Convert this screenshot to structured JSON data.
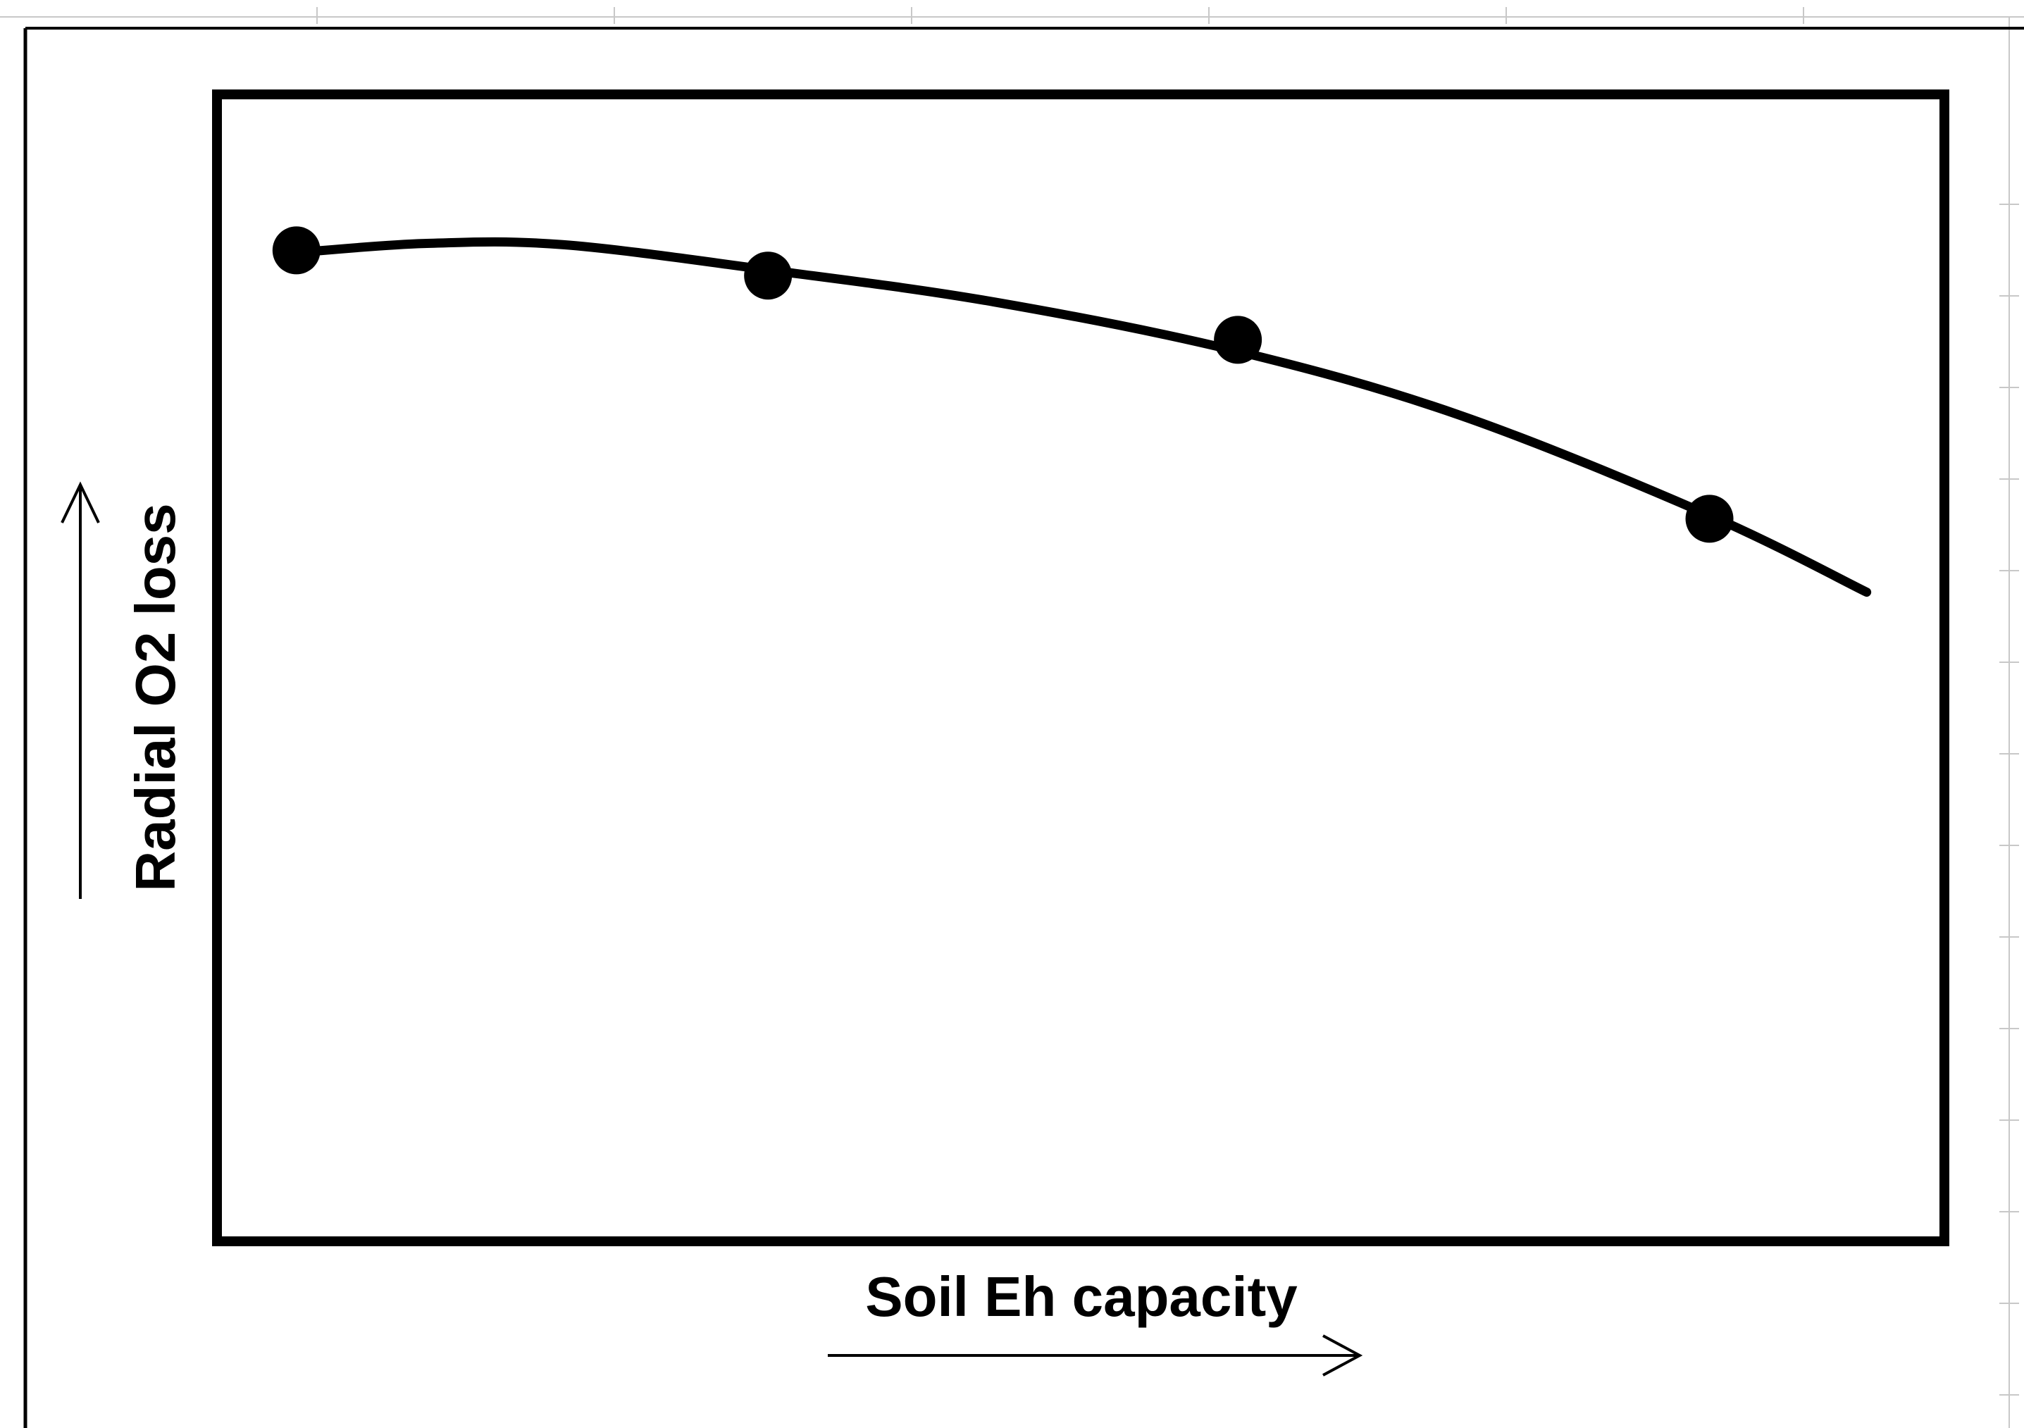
{
  "colors": {
    "background": "#ffffff",
    "ink": "#000000",
    "sheet_grid": "#c8c8c8"
  },
  "chart_data": {
    "type": "line",
    "title": "",
    "xlabel": "Soil Eh capacity",
    "ylabel": "Radial O2 loss",
    "x_ticks": [],
    "y_ticks": [],
    "xlim": [
      0,
      1
    ],
    "ylim": [
      0,
      1
    ],
    "grid": false,
    "legend": "none",
    "axis_direction_arrows": true,
    "series": [
      {
        "points": [
          {
            "x": 0.046,
            "y": 0.864
          },
          {
            "x": 0.319,
            "y": 0.842
          },
          {
            "x": 0.591,
            "y": 0.786
          },
          {
            "x": 0.864,
            "y": 0.63
          }
        ],
        "marker": "filled-circle",
        "trend_line": {
          "shape": "smooth-decreasing",
          "points": [
            {
              "x": 0.046,
              "y": 0.862
            },
            {
              "x": 0.12,
              "y": 0.87
            },
            {
              "x": 0.2,
              "y": 0.869
            },
            {
              "x": 0.319,
              "y": 0.847
            },
            {
              "x": 0.45,
              "y": 0.819
            },
            {
              "x": 0.591,
              "y": 0.776
            },
            {
              "x": 0.72,
              "y": 0.72
            },
            {
              "x": 0.864,
              "y": 0.633
            },
            {
              "x": 0.955,
              "y": 0.566
            }
          ]
        }
      }
    ]
  }
}
